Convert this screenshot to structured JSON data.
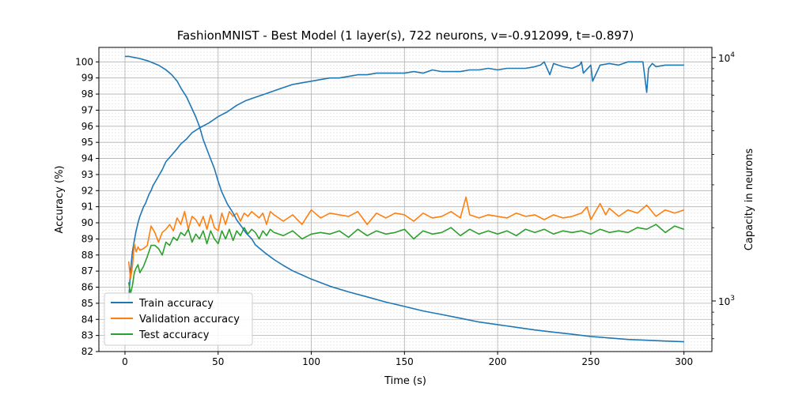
{
  "chart_data": {
    "type": "line",
    "title": "FashionMNIST - Best Model (1 layer(s), 722 neurons, v=-0.912099, t=-0.897)",
    "xlabel": "Time (s)",
    "ylabel": "Accuracy (%)",
    "ylabel_right": "Capacity in neurons",
    "xlim": [
      -14,
      315
    ],
    "ylim": [
      82,
      100.9
    ],
    "ylim_right": [
      620,
      11000
    ],
    "yscale_right": "log",
    "x_ticks": [
      0,
      50,
      100,
      150,
      200,
      250,
      300
    ],
    "y_ticks": [
      82,
      83,
      84,
      85,
      86,
      87,
      88,
      89,
      90,
      91,
      92,
      93,
      94,
      95,
      96,
      97,
      98,
      99,
      100
    ],
    "y_right_major_ticks": [
      1000,
      10000
    ],
    "y_right_major_tick_labels": [
      "10",
      "10"
    ],
    "y_right_major_tick_exponents": [
      "3",
      "4"
    ],
    "grid": true,
    "legend_position": "lower-left",
    "series": [
      {
        "name": "Train accuracy",
        "color": "#1f77b4",
        "axis": "left",
        "x": [
          2,
          3,
          4,
          5,
          6,
          7,
          8,
          9,
          10,
          11,
          12,
          13,
          14,
          15,
          16,
          18,
          20,
          22,
          25,
          28,
          30,
          33,
          36,
          40,
          45,
          50,
          55,
          60,
          65,
          70,
          75,
          80,
          85,
          90,
          95,
          100,
          105,
          110,
          115,
          120,
          125,
          130,
          135,
          140,
          145,
          150,
          155,
          160,
          165,
          170,
          175,
          180,
          185,
          190,
          195,
          200,
          205,
          210,
          215,
          220,
          223,
          225,
          228,
          230,
          235,
          240,
          244,
          245,
          246,
          250,
          251,
          255,
          260,
          265,
          270,
          275,
          278,
          280,
          281,
          283,
          285,
          290,
          295,
          300
        ],
        "y": [
          85.2,
          87.0,
          88.2,
          88.9,
          89.5,
          90.0,
          90.4,
          90.7,
          91.0,
          91.2,
          91.5,
          91.8,
          92.0,
          92.3,
          92.5,
          92.9,
          93.3,
          93.8,
          94.2,
          94.6,
          94.9,
          95.2,
          95.6,
          95.9,
          96.2,
          96.6,
          96.9,
          97.3,
          97.6,
          97.8,
          98.0,
          98.2,
          98.4,
          98.6,
          98.7,
          98.8,
          98.9,
          99.0,
          99.0,
          99.1,
          99.2,
          99.2,
          99.3,
          99.3,
          99.3,
          99.3,
          99.4,
          99.3,
          99.5,
          99.4,
          99.4,
          99.4,
          99.5,
          99.5,
          99.6,
          99.5,
          99.6,
          99.6,
          99.6,
          99.7,
          99.8,
          100.0,
          99.2,
          99.9,
          99.7,
          99.6,
          99.8,
          100.0,
          99.3,
          99.8,
          98.8,
          99.8,
          99.9,
          99.8,
          100.0,
          100.0,
          100.0,
          98.1,
          99.6,
          99.9,
          99.7,
          99.8,
          99.8,
          99.8
        ]
      },
      {
        "name": "Validation accuracy",
        "color": "#ff7f0e",
        "axis": "left",
        "x": [
          2,
          3,
          4,
          5,
          6,
          7,
          8,
          10,
          12,
          14,
          16,
          18,
          20,
          22,
          24,
          26,
          28,
          30,
          32,
          34,
          36,
          38,
          40,
          42,
          44,
          46,
          48,
          50,
          52,
          54,
          56,
          58,
          60,
          62,
          64,
          66,
          68,
          70,
          72,
          74,
          76,
          78,
          80,
          85,
          90,
          95,
          100,
          105,
          110,
          115,
          120,
          125,
          130,
          135,
          140,
          145,
          150,
          155,
          160,
          165,
          170,
          175,
          180,
          183,
          185,
          190,
          195,
          200,
          205,
          210,
          215,
          220,
          225,
          230,
          235,
          240,
          245,
          248,
          250,
          255,
          258,
          260,
          265,
          270,
          275,
          280,
          285,
          290,
          295,
          300
        ],
        "y": [
          87.6,
          86.5,
          87.3,
          88.7,
          88.2,
          88.5,
          88.3,
          88.4,
          88.6,
          89.8,
          89.4,
          88.8,
          89.4,
          89.6,
          89.9,
          89.5,
          90.3,
          89.9,
          90.7,
          89.6,
          90.4,
          90.2,
          89.8,
          90.4,
          89.6,
          90.5,
          89.7,
          89.5,
          90.6,
          89.9,
          90.7,
          90.4,
          90.6,
          90.1,
          90.6,
          90.4,
          90.7,
          90.5,
          90.3,
          90.6,
          89.9,
          90.7,
          90.5,
          90.1,
          90.5,
          89.9,
          90.8,
          90.3,
          90.6,
          90.5,
          90.4,
          90.7,
          89.9,
          90.6,
          90.3,
          90.6,
          90.5,
          90.1,
          90.6,
          90.3,
          90.4,
          90.7,
          90.3,
          91.6,
          90.5,
          90.3,
          90.5,
          90.4,
          90.3,
          90.6,
          90.4,
          90.5,
          90.2,
          90.5,
          90.3,
          90.4,
          90.6,
          91.0,
          90.2,
          91.2,
          90.5,
          90.9,
          90.4,
          90.8,
          90.6,
          91.1,
          90.4,
          90.8,
          90.6,
          90.8
        ]
      },
      {
        "name": "Test accuracy",
        "color": "#2ca02c",
        "axis": "left",
        "x": [
          2,
          3,
          4,
          5,
          6,
          7,
          8,
          10,
          12,
          14,
          16,
          18,
          20,
          22,
          24,
          26,
          28,
          30,
          32,
          34,
          36,
          38,
          40,
          42,
          44,
          46,
          48,
          50,
          52,
          54,
          56,
          58,
          60,
          62,
          64,
          66,
          68,
          70,
          72,
          74,
          76,
          78,
          80,
          85,
          90,
          95,
          100,
          105,
          110,
          115,
          120,
          125,
          130,
          135,
          140,
          145,
          150,
          155,
          160,
          165,
          170,
          175,
          180,
          185,
          190,
          195,
          200,
          205,
          210,
          215,
          220,
          225,
          230,
          235,
          240,
          245,
          250,
          255,
          260,
          265,
          270,
          275,
          280,
          285,
          290,
          295,
          300
        ],
        "y": [
          86.3,
          85.6,
          86.1,
          86.9,
          87.2,
          87.4,
          86.9,
          87.3,
          87.9,
          88.6,
          88.6,
          88.4,
          88.0,
          88.8,
          88.6,
          89.1,
          88.9,
          89.4,
          89.2,
          89.6,
          88.8,
          89.3,
          89.0,
          89.5,
          88.7,
          89.5,
          89.0,
          88.7,
          89.5,
          89.0,
          89.6,
          88.9,
          89.5,
          89.2,
          89.7,
          89.3,
          89.6,
          89.4,
          89.0,
          89.5,
          89.2,
          89.6,
          89.4,
          89.2,
          89.5,
          89.0,
          89.3,
          89.4,
          89.3,
          89.5,
          89.1,
          89.6,
          89.2,
          89.5,
          89.3,
          89.4,
          89.6,
          89.0,
          89.5,
          89.3,
          89.4,
          89.7,
          89.2,
          89.6,
          89.3,
          89.5,
          89.3,
          89.5,
          89.2,
          89.6,
          89.4,
          89.6,
          89.3,
          89.5,
          89.4,
          89.5,
          89.3,
          89.6,
          89.4,
          89.5,
          89.4,
          89.7,
          89.6,
          89.9,
          89.4,
          89.8,
          89.6
        ]
      },
      {
        "name": "",
        "color": "#1f77b4",
        "axis": "right",
        "x": [
          0,
          2,
          5,
          8,
          10,
          12,
          15,
          18,
          20,
          22,
          25,
          28,
          30,
          33,
          35,
          38,
          40,
          42,
          45,
          48,
          50,
          52,
          55,
          58,
          60,
          63,
          65,
          68,
          70,
          75,
          80,
          85,
          90,
          95,
          100,
          105,
          110,
          120,
          130,
          140,
          150,
          160,
          170,
          180,
          190,
          200,
          210,
          220,
          230,
          240,
          250,
          260,
          270,
          280,
          290,
          300
        ],
        "y": [
          10100,
          10100,
          10000,
          9900,
          9800,
          9700,
          9500,
          9300,
          9100,
          8900,
          8500,
          8000,
          7500,
          6900,
          6400,
          5700,
          5200,
          4600,
          4000,
          3500,
          3100,
          2800,
          2500,
          2300,
          2150,
          2000,
          1900,
          1800,
          1700,
          1580,
          1480,
          1400,
          1330,
          1280,
          1230,
          1190,
          1150,
          1090,
          1040,
          990,
          950,
          910,
          880,
          850,
          820,
          800,
          780,
          760,
          745,
          730,
          715,
          705,
          695,
          690,
          685,
          680
        ]
      }
    ]
  }
}
